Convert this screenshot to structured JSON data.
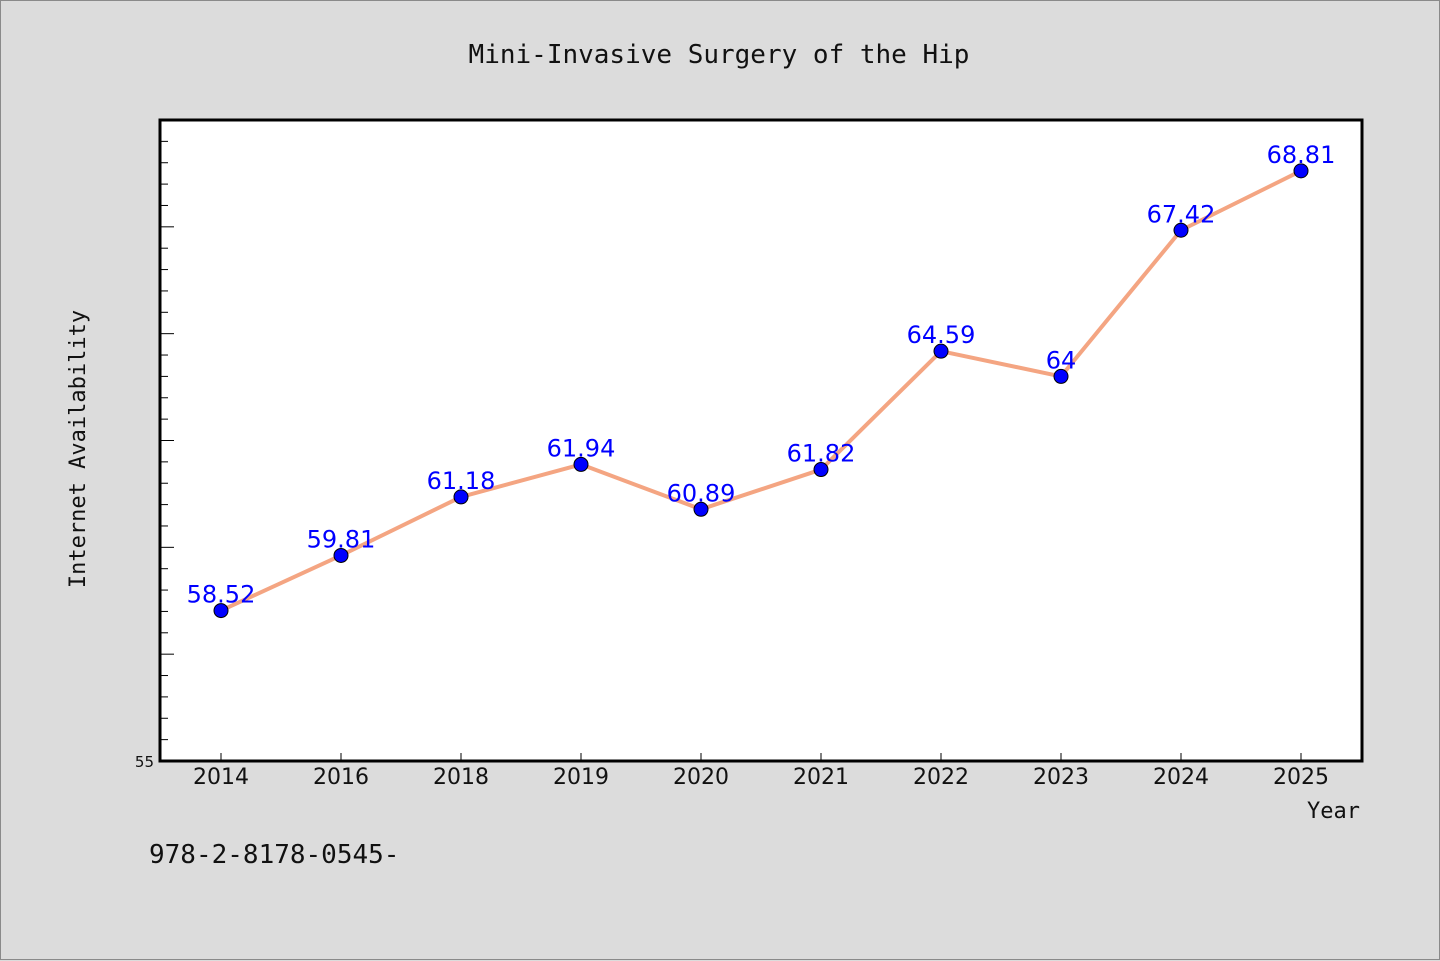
{
  "chart_data": {
    "type": "line",
    "title": "Mini-Invasive Surgery of the Hip",
    "xlabel": "Year",
    "ylabel": "Internet Availability",
    "categories": [
      "2014",
      "2016",
      "2018",
      "2019",
      "2020",
      "2021",
      "2022",
      "2023",
      "2024",
      "2025"
    ],
    "series": [
      {
        "values": [
          58.52,
          59.81,
          61.18,
          61.94,
          60.89,
          61.82,
          64.59,
          64,
          67.42,
          68.81
        ],
        "data_labels": [
          "58.52",
          "59.81",
          "61.18",
          "61.94",
          "60.89",
          "61.82",
          "64.59",
          "64",
          "67.42",
          "68.81"
        ],
        "line_color": "#f4a582",
        "marker_color": "#0000ff"
      }
    ],
    "ylim": [
      55,
      70
    ],
    "ytick_labels": [
      "55"
    ],
    "grid": false,
    "legend": false,
    "plot_background": "#ffffff",
    "figure_background": "#dcdcdc"
  },
  "footnote": "978-2-8178-0545-"
}
